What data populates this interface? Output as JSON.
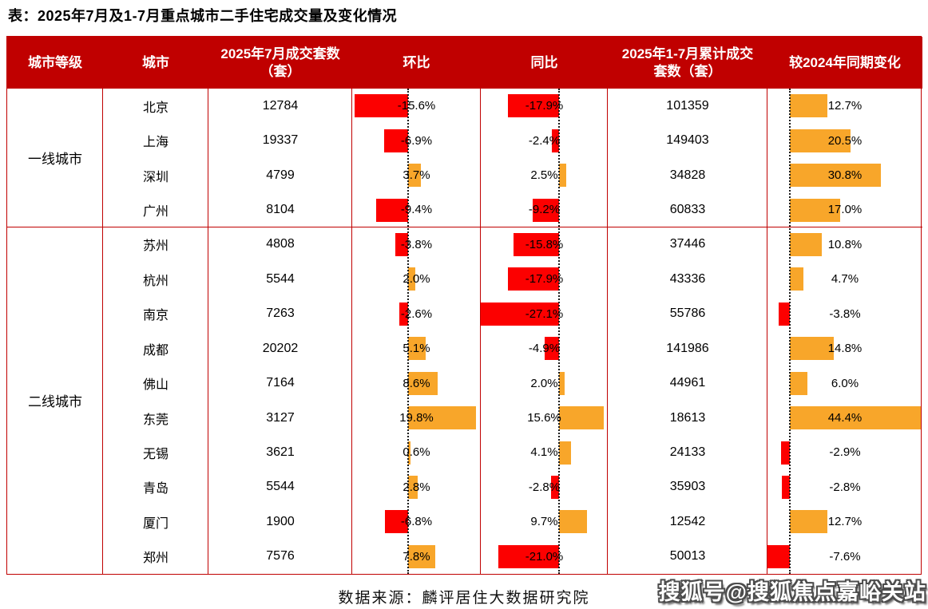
{
  "title": "表：2025年7月及1-7月重点城市二手住宅成交量及变化情况",
  "source_note": "数据来源：麟评居住大数据研究院",
  "watermark": "搜狐号@搜狐焦点嘉峪关站",
  "colors": {
    "header_bg": "#C00000",
    "table_border": "#C00000",
    "negative_bar": "#FC0000",
    "positive_bar": "#F8A62A",
    "header_text": "#FFFFFF",
    "body_text": "#000000"
  },
  "chart_data": {
    "type": "table",
    "title": "2025年7月及1-7月重点城市二手住宅成交量及变化情况",
    "columns": [
      "城市等级",
      "城市",
      "2025年7月成交套数（套）",
      "环比",
      "同比",
      "2025年1-7月累计成交套数（套）",
      "较2024年同期变化"
    ],
    "bar_columns_note": "环比 / 同比 / 较2024年同期变化 rendered as diverging bars: negative red to the left of dotted zero baseline, positive orange to the right, value label centered in cell",
    "rows": [
      {
        "tier": "一线城市",
        "city": "北京",
        "jul_2025_units": 12784,
        "mom_pct": -15.6,
        "yoy_pct": -17.9,
        "jan_jul_2025_units": 101359,
        "vs_2024_pct": 12.7
      },
      {
        "tier": "一线城市",
        "city": "上海",
        "jul_2025_units": 19337,
        "mom_pct": -6.9,
        "yoy_pct": -2.4,
        "jan_jul_2025_units": 149403,
        "vs_2024_pct": 20.5
      },
      {
        "tier": "一线城市",
        "city": "深圳",
        "jul_2025_units": 4799,
        "mom_pct": 3.7,
        "yoy_pct": 2.5,
        "jan_jul_2025_units": 34828,
        "vs_2024_pct": 30.8
      },
      {
        "tier": "一线城市",
        "city": "广州",
        "jul_2025_units": 8104,
        "mom_pct": -9.4,
        "yoy_pct": -9.2,
        "jan_jul_2025_units": 60833,
        "vs_2024_pct": 17.0
      },
      {
        "tier": "二线城市",
        "city": "苏州",
        "jul_2025_units": 4808,
        "mom_pct": -3.8,
        "yoy_pct": -15.8,
        "jan_jul_2025_units": 37446,
        "vs_2024_pct": 10.8
      },
      {
        "tier": "二线城市",
        "city": "杭州",
        "jul_2025_units": 5544,
        "mom_pct": 2.0,
        "yoy_pct": -17.9,
        "jan_jul_2025_units": 43336,
        "vs_2024_pct": 4.7
      },
      {
        "tier": "二线城市",
        "city": "南京",
        "jul_2025_units": 7263,
        "mom_pct": -2.6,
        "yoy_pct": -27.1,
        "jan_jul_2025_units": 55786,
        "vs_2024_pct": -3.8
      },
      {
        "tier": "二线城市",
        "city": "成都",
        "jul_2025_units": 20202,
        "mom_pct": 5.1,
        "yoy_pct": -4.9,
        "jan_jul_2025_units": 141986,
        "vs_2024_pct": 14.8
      },
      {
        "tier": "二线城市",
        "city": "佛山",
        "jul_2025_units": 7164,
        "mom_pct": 8.6,
        "yoy_pct": 2.0,
        "jan_jul_2025_units": 44961,
        "vs_2024_pct": 6.0
      },
      {
        "tier": "二线城市",
        "city": "东莞",
        "jul_2025_units": 3127,
        "mom_pct": 19.8,
        "yoy_pct": 15.6,
        "jan_jul_2025_units": 18613,
        "vs_2024_pct": 44.4
      },
      {
        "tier": "二线城市",
        "city": "无锡",
        "jul_2025_units": 3621,
        "mom_pct": 0.6,
        "yoy_pct": 4.1,
        "jan_jul_2025_units": 24133,
        "vs_2024_pct": -2.9
      },
      {
        "tier": "二线城市",
        "city": "青岛",
        "jul_2025_units": 5544,
        "mom_pct": 2.8,
        "yoy_pct": -2.8,
        "jan_jul_2025_units": 35903,
        "vs_2024_pct": -2.8
      },
      {
        "tier": "二线城市",
        "city": "厦门",
        "jul_2025_units": 1900,
        "mom_pct": -6.8,
        "yoy_pct": 9.7,
        "jan_jul_2025_units": 12542,
        "vs_2024_pct": 12.7
      },
      {
        "tier": "二线城市",
        "city": "郑州",
        "jul_2025_units": 7576,
        "mom_pct": 7.8,
        "yoy_pct": -21.0,
        "jan_jul_2025_units": 50013,
        "vs_2024_pct": -7.6
      }
    ]
  }
}
